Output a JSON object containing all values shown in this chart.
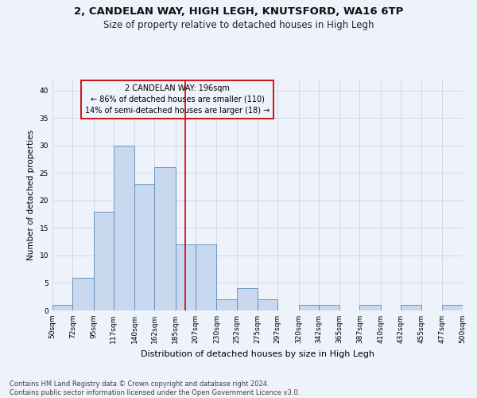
{
  "title1": "2, CANDELAN WAY, HIGH LEGH, KNUTSFORD, WA16 6TP",
  "title2": "Size of property relative to detached houses in High Legh",
  "xlabel": "Distribution of detached houses by size in High Legh",
  "ylabel": "Number of detached properties",
  "footer1": "Contains HM Land Registry data © Crown copyright and database right 2024.",
  "footer2": "Contains public sector information licensed under the Open Government Licence v3.0.",
  "annotation_line1": "2 CANDELAN WAY: 196sqm",
  "annotation_line2": "← 86% of detached houses are smaller (110)",
  "annotation_line3": "14% of semi-detached houses are larger (18) →",
  "bar_values": [
    1,
    6,
    18,
    30,
    23,
    26,
    12,
    12,
    2,
    4,
    2,
    0,
    1,
    1,
    0,
    1,
    0,
    1,
    0,
    1
  ],
  "bin_labels": [
    "50sqm",
    "72sqm",
    "95sqm",
    "117sqm",
    "140sqm",
    "162sqm",
    "185sqm",
    "207sqm",
    "230sqm",
    "252sqm",
    "275sqm",
    "297sqm",
    "320sqm",
    "342sqm",
    "365sqm",
    "387sqm",
    "410sqm",
    "432sqm",
    "455sqm",
    "477sqm",
    "500sqm"
  ],
  "bar_color": "#c8d8ee",
  "bar_edge_color": "#5b8ab5",
  "vline_x": 196,
  "vline_color": "#cc0000",
  "annotation_box_color": "#cc0000",
  "grid_color": "#d0d8e8",
  "background_color": "#eef2fa",
  "ylim": [
    0,
    42
  ],
  "yticks": [
    0,
    5,
    10,
    15,
    20,
    25,
    30,
    35,
    40
  ],
  "bin_edges": [
    50,
    72,
    95,
    117,
    140,
    162,
    185,
    207,
    230,
    252,
    275,
    297,
    320,
    342,
    365,
    387,
    410,
    432,
    455,
    477,
    500
  ],
  "title1_fontsize": 9.5,
  "title2_fontsize": 8.5,
  "xlabel_fontsize": 8,
  "ylabel_fontsize": 7.5,
  "tick_fontsize": 6.5,
  "footer_fontsize": 6,
  "annot_fontsize": 7
}
